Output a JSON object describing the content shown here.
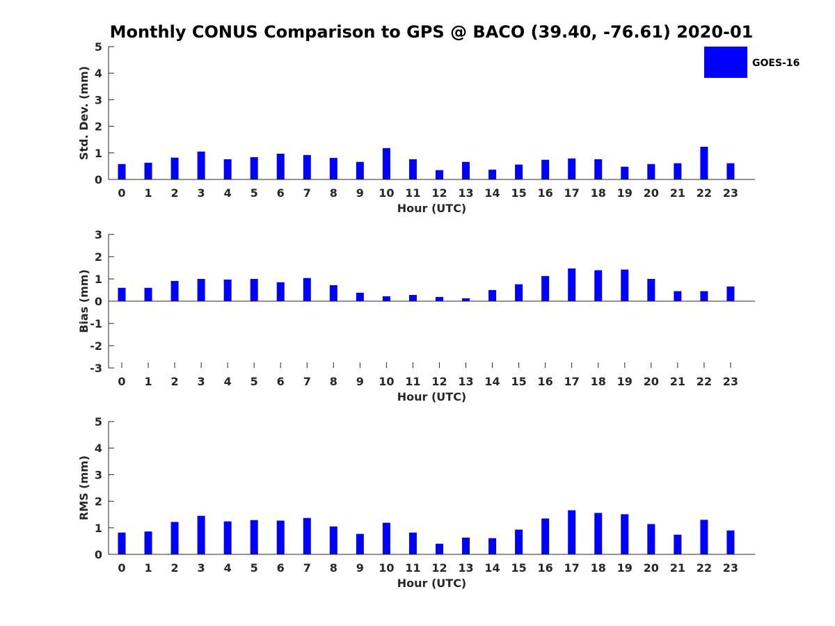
{
  "title": "Monthly CONUS Comparison to GPS @ BACO (39.40, -76.61) 2020-01",
  "legend": {
    "label": "GOES-16",
    "color": "#0000ff"
  },
  "chart_data": [
    {
      "type": "bar",
      "xlabel": "Hour (UTC)",
      "ylabel": "Std. Dev. (mm)",
      "ylim": [
        0,
        5
      ],
      "yticks": [
        0,
        1,
        2,
        3,
        4,
        5
      ],
      "categories": [
        "0",
        "1",
        "2",
        "3",
        "4",
        "5",
        "6",
        "7",
        "8",
        "9",
        "10",
        "11",
        "12",
        "13",
        "14",
        "15",
        "16",
        "17",
        "18",
        "19",
        "20",
        "21",
        "22",
        "23"
      ],
      "series": [
        {
          "name": "GOES-16",
          "values": [
            0.58,
            0.63,
            0.82,
            1.05,
            0.76,
            0.84,
            0.97,
            0.92,
            0.81,
            0.66,
            1.18,
            0.76,
            0.35,
            0.66,
            0.37,
            0.56,
            0.74,
            0.79,
            0.76,
            0.48,
            0.58,
            0.61,
            1.23,
            0.61
          ]
        }
      ]
    },
    {
      "type": "bar",
      "xlabel": "Hour (UTC)",
      "ylabel": "Bias (mm)",
      "ylim": [
        -3,
        3
      ],
      "yticks": [
        -3,
        -2,
        -1,
        0,
        1,
        2,
        3
      ],
      "categories": [
        "0",
        "1",
        "2",
        "3",
        "4",
        "5",
        "6",
        "7",
        "8",
        "9",
        "10",
        "11",
        "12",
        "13",
        "14",
        "15",
        "16",
        "17",
        "18",
        "19",
        "20",
        "21",
        "22",
        "23"
      ],
      "series": [
        {
          "name": "GOES-16",
          "values": [
            0.6,
            0.6,
            0.91,
            1.0,
            0.97,
            1.0,
            0.85,
            1.04,
            0.72,
            0.38,
            0.22,
            0.28,
            0.19,
            0.13,
            0.5,
            0.76,
            1.13,
            1.47,
            1.39,
            1.42,
            1.0,
            0.45,
            0.45,
            0.66
          ]
        }
      ]
    },
    {
      "type": "bar",
      "xlabel": "Hour (UTC)",
      "ylabel": "RMS (mm)",
      "ylim": [
        0,
        5
      ],
      "yticks": [
        0,
        1,
        2,
        3,
        4,
        5
      ],
      "categories": [
        "0",
        "1",
        "2",
        "3",
        "4",
        "5",
        "6",
        "7",
        "8",
        "9",
        "10",
        "11",
        "12",
        "13",
        "14",
        "15",
        "16",
        "17",
        "18",
        "19",
        "20",
        "21",
        "22",
        "23"
      ],
      "series": [
        {
          "name": "GOES-16",
          "values": [
            0.82,
            0.86,
            1.22,
            1.45,
            1.24,
            1.29,
            1.27,
            1.37,
            1.05,
            0.77,
            1.19,
            0.82,
            0.4,
            0.63,
            0.61,
            0.93,
            1.35,
            1.66,
            1.56,
            1.51,
            1.14,
            0.74,
            1.3,
            0.9
          ]
        }
      ]
    }
  ]
}
